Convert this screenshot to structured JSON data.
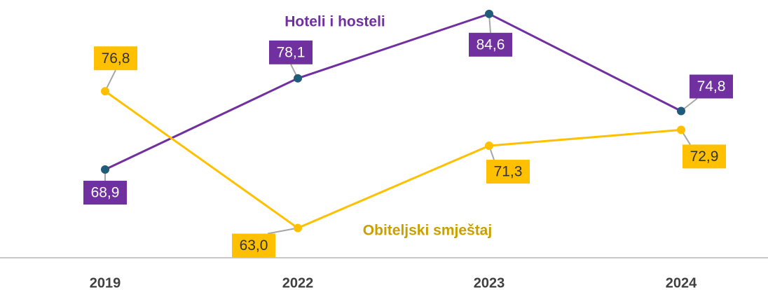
{
  "chart_data": {
    "type": "line",
    "categories": [
      "2019",
      "2022",
      "2023",
      "2024"
    ],
    "series": [
      {
        "name": "Hoteli i hosteli",
        "color": "#7030a0",
        "marker_color": "#1f5c7a",
        "values": [
          68.9,
          78.1,
          84.6,
          74.8
        ],
        "value_labels": [
          "68,9",
          "78,1",
          "84,6",
          "74,8"
        ]
      },
      {
        "name": "Obiteljski smještaj",
        "color": "#ffc000",
        "marker_color": "#ffc000",
        "values": [
          76.8,
          63.0,
          71.3,
          72.9
        ],
        "value_labels": [
          "76,8",
          "63,0",
          "71,3",
          "72,9"
        ]
      }
    ],
    "ylim": [
      60,
      86
    ],
    "grid": false
  }
}
